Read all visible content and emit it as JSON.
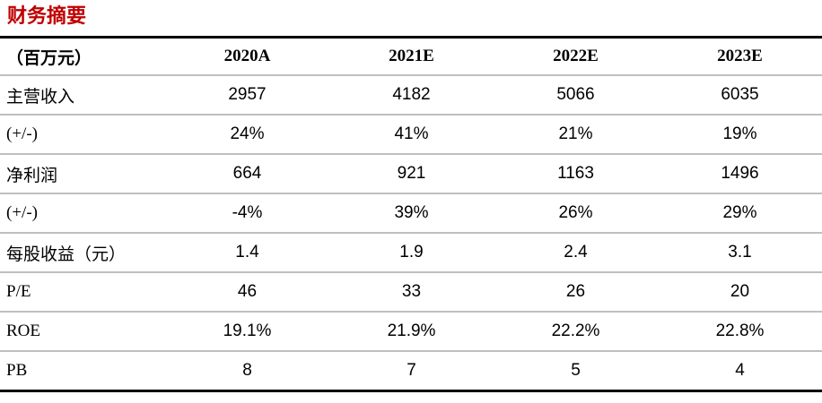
{
  "title": "财务摘要",
  "colors": {
    "title_red": "#C00000",
    "border_strong": "#000000",
    "border_light": "#BFBFBF"
  },
  "table": {
    "header": [
      "（百万元）",
      "2020A",
      "2021E",
      "2022E",
      "2023E"
    ],
    "rows": [
      {
        "label": "主营收入",
        "values": [
          "2957",
          "4182",
          "5066",
          "6035"
        ]
      },
      {
        "label": "(+/-)",
        "values": [
          "24%",
          "41%",
          "21%",
          "19%"
        ]
      },
      {
        "label": "净利润",
        "values": [
          "664",
          "921",
          "1163",
          "1496"
        ]
      },
      {
        "label": "(+/-)",
        "values": [
          "-4%",
          "39%",
          "26%",
          "29%"
        ]
      },
      {
        "label": "每股收益（元）",
        "values": [
          "1.4",
          "1.9",
          "2.4",
          "3.1"
        ]
      },
      {
        "label": "P/E",
        "values": [
          "46",
          "33",
          "26",
          "20"
        ]
      },
      {
        "label": "ROE",
        "values": [
          "19.1%",
          "21.9%",
          "22.2%",
          "22.8%"
        ]
      },
      {
        "label": "PB",
        "values": [
          "8",
          "7",
          "5",
          "4"
        ]
      }
    ]
  }
}
